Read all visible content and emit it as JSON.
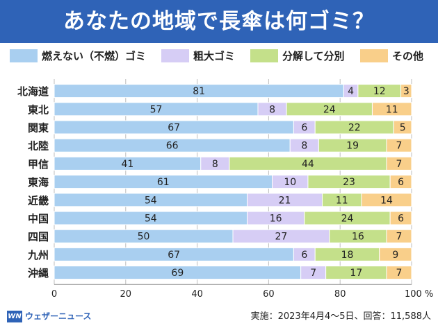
{
  "title": "あなたの地域で長傘は何ゴミ？",
  "legend": [
    {
      "label": "燃えない（不燃）ゴミ",
      "color": "#a9cff0"
    },
    {
      "label": "粗大ゴミ",
      "color": "#d6cdf5"
    },
    {
      "label": "分解して分別",
      "color": "#c4e08a"
    },
    {
      "label": "その他",
      "color": "#f9cf8a"
    }
  ],
  "chart_data": {
    "type": "bar",
    "orientation": "horizontal",
    "stacked": true,
    "categories": [
      "北海道",
      "東北",
      "関東",
      "北陸",
      "甲信",
      "東海",
      "近畿",
      "中国",
      "四国",
      "九州",
      "沖縄"
    ],
    "series": [
      {
        "name": "燃えない（不燃）ゴミ",
        "color": "#a9cff0",
        "values": [
          81,
          57,
          67,
          66,
          41,
          61,
          54,
          54,
          50,
          67,
          69
        ]
      },
      {
        "name": "粗大ゴミ",
        "color": "#d6cdf5",
        "values": [
          4,
          8,
          6,
          8,
          8,
          10,
          21,
          16,
          27,
          6,
          7
        ]
      },
      {
        "name": "分解して分別",
        "color": "#c4e08a",
        "values": [
          12,
          24,
          22,
          19,
          44,
          23,
          11,
          24,
          16,
          18,
          17
        ]
      },
      {
        "name": "その他",
        "color": "#f9cf8a",
        "values": [
          3,
          11,
          5,
          7,
          7,
          6,
          14,
          6,
          7,
          9,
          7
        ]
      }
    ],
    "xlim": [
      0,
      100
    ],
    "xticks": [
      0,
      20,
      40,
      60,
      80,
      100
    ],
    "xtick_labels": [
      "0",
      "20",
      "40",
      "60",
      "80",
      "100 %"
    ],
    "grid": true
  },
  "footer": {
    "logo_mark": "WN",
    "logo_text": "ウェザーニュース",
    "note": "実施：2023年4月4～5日、回答：11,588人"
  }
}
